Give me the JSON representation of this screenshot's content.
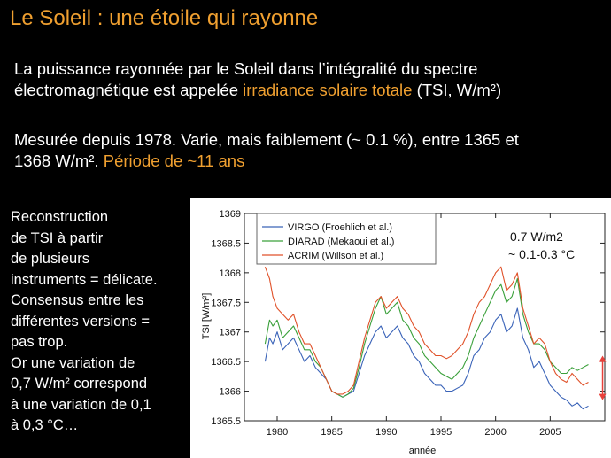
{
  "slide": {
    "title": "Le Soleil : une étoile qui rayonne",
    "para1": {
      "line1": "La puissance rayonnée par le Soleil dans l’intégralité du spectre",
      "line2_pre": "électromagnétique est appelée ",
      "line2_hl": "irradiance solaire totale",
      "line2_post": " (TSI, W/m²)"
    },
    "para2": {
      "line1": "Mesurée depuis 1978. Varie, mais faiblement (~ 0.1 %), entre 1365 et",
      "line2_pre": "1368 W/m². ",
      "line2_hl": "Période de ~11 ans"
    },
    "left_text": [
      "Reconstruction",
      "de TSI à partir",
      "de plusieurs",
      "instruments = délicate.",
      "Consensus entre les",
      "différentes versions =",
      "pas trop.",
      "Or une variation de",
      "0,7 W/m² correspond",
      "à une variation de 0,1",
      "à 0,3 °C…"
    ]
  },
  "chart_data": {
    "type": "line",
    "title": "",
    "xlabel": "année",
    "ylabel": "TSI [W/m²]",
    "xlim": [
      1977,
      2010
    ],
    "ylim": [
      1365.5,
      1369
    ],
    "x_ticks": [
      1980,
      1985,
      1990,
      1995,
      2000,
      2005
    ],
    "y_ticks": [
      1365.5,
      1366,
      1366.5,
      1367,
      1367.5,
      1368,
      1368.5,
      1369
    ],
    "y_tick_labels": [
      "1365.5",
      "1366",
      "1366.5",
      "1367",
      "1367.5",
      "1368",
      "1368.5",
      "1369"
    ],
    "annotation_lines": [
      "0.7 W/m2",
      "~ 0.1-0.3 °C"
    ],
    "arrow": {
      "x": 2009.8,
      "y_from": 1365.85,
      "y_to": 1366.6,
      "color": "#e8403a"
    },
    "series": [
      {
        "name": "VIRGO (Froehlich et al.)",
        "color": "#3a63b8",
        "x": [
          1978.9,
          1979.3,
          1979.6,
          1980.0,
          1980.5,
          1981.0,
          1981.5,
          1982.0,
          1982.5,
          1983.0,
          1983.5,
          1984.0,
          1984.5,
          1985.0,
          1985.5,
          1986.0,
          1986.5,
          1987.0,
          1987.5,
          1988.0,
          1988.5,
          1989.0,
          1989.5,
          1990.0,
          1990.5,
          1991.0,
          1991.5,
          1992.0,
          1992.5,
          1993.0,
          1993.5,
          1994.0,
          1994.5,
          1995.0,
          1995.5,
          1996.0,
          1996.5,
          1997.0,
          1997.5,
          1998.0,
          1998.5,
          1999.0,
          1999.5,
          2000.0,
          2000.5,
          2001.0,
          2001.5,
          2002.0,
          2002.5,
          2003.0,
          2003.5,
          2004.0,
          2004.5,
          2005.0,
          2005.5,
          2006.0,
          2006.5,
          2007.0,
          2007.5,
          2008.0,
          2008.5
        ],
        "values": [
          1366.5,
          1366.9,
          1366.8,
          1367.0,
          1366.7,
          1366.8,
          1366.9,
          1366.7,
          1366.5,
          1366.6,
          1366.4,
          1366.3,
          1366.2,
          1366.0,
          1365.95,
          1365.9,
          1365.95,
          1366.0,
          1366.3,
          1366.6,
          1366.8,
          1367.0,
          1367.1,
          1366.9,
          1367.0,
          1367.1,
          1366.9,
          1366.8,
          1366.6,
          1366.5,
          1366.3,
          1366.2,
          1366.1,
          1366.1,
          1366.0,
          1366.0,
          1366.05,
          1366.1,
          1366.3,
          1366.6,
          1366.7,
          1366.9,
          1367.0,
          1367.2,
          1367.3,
          1367.0,
          1367.1,
          1367.4,
          1366.9,
          1366.7,
          1366.4,
          1366.5,
          1366.3,
          1366.1,
          1366.0,
          1365.9,
          1365.85,
          1365.75,
          1365.8,
          1365.7,
          1365.75
        ]
      },
      {
        "name": "DIARAD (Mekaoui et al.)",
        "color": "#3aa03a",
        "x": [
          1978.9,
          1979.3,
          1979.6,
          1980.0,
          1980.5,
          1981.0,
          1981.5,
          1982.0,
          1982.5,
          1983.0,
          1983.5,
          1984.0,
          1984.5,
          1985.0,
          1985.5,
          1986.0,
          1986.5,
          1987.0,
          1987.5,
          1988.0,
          1988.5,
          1989.0,
          1989.5,
          1990.0,
          1990.5,
          1991.0,
          1991.5,
          1992.0,
          1992.5,
          1993.0,
          1993.5,
          1994.0,
          1994.5,
          1995.0,
          1995.5,
          1996.0,
          1996.5,
          1997.0,
          1997.5,
          1998.0,
          1998.5,
          1999.0,
          1999.5,
          2000.0,
          2000.5,
          2001.0,
          2001.5,
          2002.0,
          2002.5,
          2003.0,
          2003.5,
          2004.0,
          2004.5,
          2005.0,
          2005.5,
          2006.0,
          2006.5,
          2007.0,
          2007.5,
          2008.0,
          2008.5
        ],
        "values": [
          1366.8,
          1367.2,
          1367.1,
          1367.2,
          1366.9,
          1367.0,
          1367.1,
          1366.9,
          1366.7,
          1366.7,
          1366.5,
          1366.4,
          1366.2,
          1366.0,
          1365.95,
          1365.9,
          1365.95,
          1366.05,
          1366.4,
          1366.8,
          1367.1,
          1367.4,
          1367.6,
          1367.3,
          1367.4,
          1367.5,
          1367.2,
          1367.1,
          1366.9,
          1366.8,
          1366.6,
          1366.5,
          1366.4,
          1366.3,
          1366.25,
          1366.2,
          1366.3,
          1366.4,
          1366.6,
          1366.9,
          1367.1,
          1367.3,
          1367.5,
          1367.7,
          1367.8,
          1367.5,
          1367.6,
          1367.9,
          1367.3,
          1367.0,
          1366.8,
          1366.8,
          1366.7,
          1366.5,
          1366.4,
          1366.3,
          1366.3,
          1366.4,
          1366.35,
          1366.4,
          1366.45
        ]
      },
      {
        "name": "ACRIM (Willson et al.)",
        "color": "#e0522a",
        "x": [
          1978.9,
          1979.3,
          1979.6,
          1980.0,
          1980.5,
          1981.0,
          1981.5,
          1982.0,
          1982.5,
          1983.0,
          1983.5,
          1984.0,
          1984.5,
          1985.0,
          1985.5,
          1986.0,
          1986.5,
          1987.0,
          1987.5,
          1988.0,
          1988.5,
          1989.0,
          1989.5,
          1990.0,
          1990.5,
          1991.0,
          1991.5,
          1992.0,
          1992.5,
          1993.0,
          1993.5,
          1994.0,
          1994.5,
          1995.0,
          1995.5,
          1996.0,
          1996.5,
          1997.0,
          1997.5,
          1998.0,
          1998.5,
          1999.0,
          1999.5,
          2000.0,
          2000.5,
          2001.0,
          2001.5,
          2002.0,
          2002.5,
          2003.0,
          2003.5,
          2004.0,
          2004.5,
          2005.0,
          2005.5,
          2006.0,
          2006.5,
          2007.0,
          2007.5,
          2008.0,
          2008.5
        ],
        "values": [
          1368.1,
          1367.9,
          1367.6,
          1367.4,
          1367.3,
          1367.2,
          1367.3,
          1367.0,
          1366.8,
          1366.8,
          1366.6,
          1366.4,
          1366.2,
          1366.0,
          1365.95,
          1365.95,
          1366.0,
          1366.1,
          1366.5,
          1366.9,
          1367.2,
          1367.5,
          1367.6,
          1367.4,
          1367.5,
          1367.6,
          1367.4,
          1367.3,
          1367.1,
          1367.0,
          1366.8,
          1366.7,
          1366.6,
          1366.6,
          1366.55,
          1366.6,
          1366.7,
          1366.8,
          1367.0,
          1367.3,
          1367.5,
          1367.6,
          1367.8,
          1368.0,
          1368.1,
          1367.7,
          1367.8,
          1368.0,
          1367.4,
          1367.1,
          1366.8,
          1366.9,
          1366.8,
          1366.5,
          1366.3,
          1366.2,
          1366.15,
          1366.3,
          1366.2,
          1366.1,
          1366.15
        ]
      }
    ]
  }
}
